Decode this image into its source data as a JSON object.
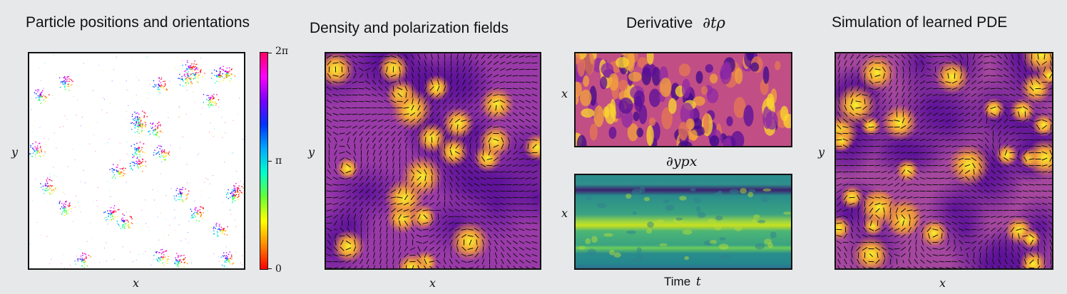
{
  "panels": {
    "particles": {
      "title": "Particle positions and orientations",
      "xlabel": "x",
      "ylabel": "y",
      "colorbar": {
        "ticks": [
          "2π",
          "π",
          "0"
        ]
      }
    },
    "fields": {
      "title": "Density and polarization fields",
      "xlabel": "x",
      "ylabel": "y"
    },
    "derivative": {
      "title": "Derivative",
      "title_math": "∂tρ",
      "top_ylabel": "x",
      "mid_label": "∂ypx",
      "bottom_ylabel": "x",
      "xlabel_text": "Time",
      "xlabel_var": "t"
    },
    "simulation": {
      "title": "Simulation of learned PDE",
      "xlabel": "x",
      "ylabel": "y"
    }
  },
  "colors": {
    "background": "#e7e8ea",
    "plasma_low": "#6a1aa0",
    "plasma_mid": "#e07848",
    "plasma_high": "#f4f01e",
    "viridis_low": "#3b1f6e",
    "viridis_mid": "#21918c",
    "viridis_high": "#c8e020"
  }
}
